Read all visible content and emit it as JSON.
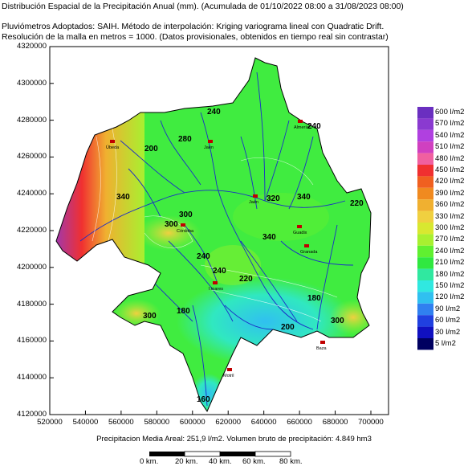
{
  "header": {
    "title": "Distribución Espacial de la Precipitación Anual (mm). (Acumulada de 01/10/2022 08:00 a 31/08/2023 08:00)",
    "line2": "Pluviómetros Adoptados: SAIH.  Método de interpolación: Kriging variograma lineal con Quadratic Drift.",
    "line3": "Resolución de la malla en metros = 1000. (Datos provisionales, obtenidos en tiempo real sin contrastar)"
  },
  "axes": {
    "y_ticks": [
      "4320000",
      "4300000",
      "4280000",
      "4260000",
      "4240000",
      "4220000",
      "4200000",
      "4180000",
      "4160000",
      "4140000",
      "4120000"
    ],
    "x_ticks": [
      "520000",
      "540000",
      "560000",
      "580000",
      "600000",
      "620000",
      "640000",
      "660000",
      "680000",
      "700000"
    ]
  },
  "legend": {
    "items": [
      {
        "label": "600 l/m2",
        "color": "#6a2fc0"
      },
      {
        "label": "570 l/m2",
        "color": "#8a3ad0"
      },
      {
        "label": "540 l/m2",
        "color": "#b040e0"
      },
      {
        "label": "510 l/m2",
        "color": "#d040c0"
      },
      {
        "label": "480 l/m2",
        "color": "#f060a0"
      },
      {
        "label": "450 l/m2",
        "color": "#f03030"
      },
      {
        "label": "420 l/m2",
        "color": "#f06020"
      },
      {
        "label": "390 l/m2",
        "color": "#f08a20"
      },
      {
        "label": "360 l/m2",
        "color": "#f0b030"
      },
      {
        "label": "330 l/m2",
        "color": "#f0d040"
      },
      {
        "label": "300 l/m2",
        "color": "#d8e830"
      },
      {
        "label": "270 l/m2",
        "color": "#a8f030"
      },
      {
        "label": "240 l/m2",
        "color": "#60f030"
      },
      {
        "label": "210 l/m2",
        "color": "#30e840"
      },
      {
        "label": "180 l/m2",
        "color": "#30e8a0"
      },
      {
        "label": "150 l/m2",
        "color": "#30e8e0"
      },
      {
        "label": "120 l/m2",
        "color": "#30c0f0"
      },
      {
        "label": "90 l/m2",
        "color": "#3080f0"
      },
      {
        "label": "60 l/m2",
        "color": "#2040e0"
      },
      {
        "label": "30 l/m2",
        "color": "#1010c0"
      },
      {
        "label": "5 l/m2",
        "color": "#000060"
      }
    ]
  },
  "contour_labels": [
    "240",
    "280",
    "200",
    "340",
    "300",
    "340",
    "340",
    "320",
    "300",
    "240",
    "240",
    "180",
    "300",
    "180",
    "160",
    "220",
    "300",
    "200",
    "240",
    "220"
  ],
  "place_labels": [
    "Jaén",
    "Almería",
    "Córdoba",
    "Jaén",
    "Linares",
    "Granada",
    "Motril",
    "Baza",
    "Úbeda",
    "Guadix"
  ],
  "footer": {
    "text": "Precipitacion Media Areal: 251,9 l/m2. Volumen bruto de precipitación: 4.849 hm3"
  },
  "scale": {
    "labels": [
      "0 km.",
      "20 km.",
      "40 km.",
      "60 km.",
      "80 km."
    ]
  }
}
